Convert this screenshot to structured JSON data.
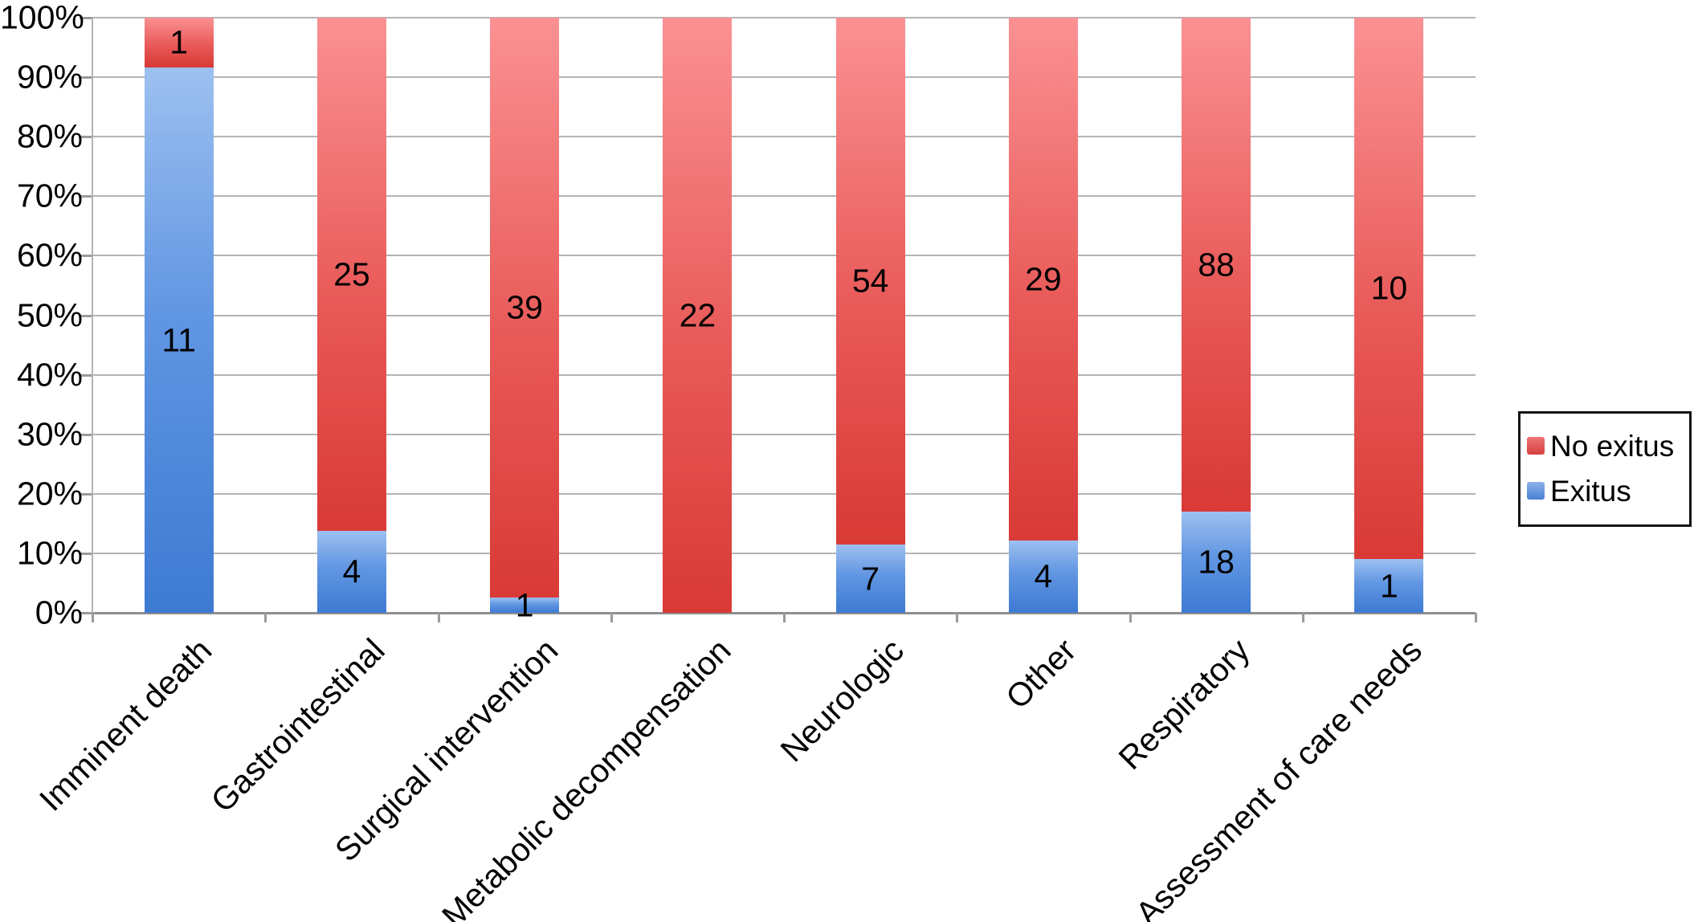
{
  "chart_data": {
    "type": "bar",
    "variant": "stacked-100-percent",
    "title": "",
    "xlabel": "",
    "ylabel": "",
    "grid": true,
    "legend_position": "right",
    "categories": [
      "Imminent death",
      "Gastrointestinal",
      "Surgical intervention",
      "Metabolic decompensation",
      "Neurologic",
      "Other",
      "Respiratory",
      "Assessment of care needs"
    ],
    "series": [
      {
        "name": "No exitus",
        "color": "#e05251",
        "color_light": "#fb9193",
        "color_dark": "#d93a36",
        "values": [
          1,
          25,
          39,
          22,
          54,
          29,
          88,
          10
        ]
      },
      {
        "name": "Exitus",
        "color": "#4a80d2",
        "color_light": "#9dc0f0",
        "color_dark": "#3d7ad2",
        "values": [
          11,
          4,
          1,
          0,
          7,
          4,
          18,
          1
        ]
      }
    ],
    "exitus_percent_by_category": [
      91.7,
      13.8,
      2.5,
      0.0,
      11.5,
      12.1,
      17.0,
      9.1
    ],
    "y_axis": {
      "min": 0,
      "max": 100,
      "ticks": [
        "0%",
        "10%",
        "20%",
        "30%",
        "40%",
        "50%",
        "60%",
        "70%",
        "80%",
        "90%",
        "100%"
      ]
    },
    "colors": {
      "gridline": "#b4b4b4",
      "axis": "#8f8f8f",
      "label_text": "#000000",
      "background": "#ffffff"
    }
  },
  "legend": {
    "entries": [
      {
        "label": "No exitus",
        "swatch": "red-swatch-icon"
      },
      {
        "label": "Exitus",
        "swatch": "blue-swatch-icon"
      }
    ]
  }
}
